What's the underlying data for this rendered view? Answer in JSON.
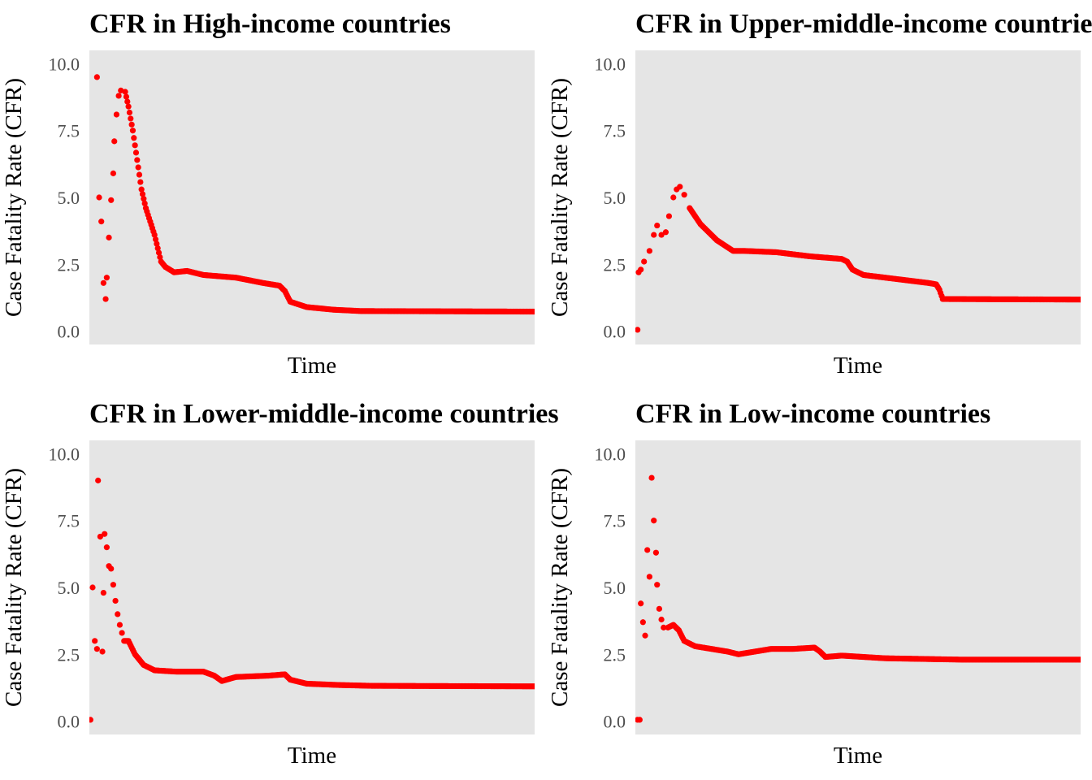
{
  "colors": {
    "point": "#ff0000",
    "panel_background": "#e5e5e5",
    "tick_text": "#4d4d4d"
  },
  "chart_data": [
    {
      "type": "scatter",
      "title": "CFR in High-income countries",
      "xlabel": "Time",
      "ylabel": "Case Fatality Rate (CFR)",
      "x_ticks": "none",
      "y_ticks": [
        0.0,
        2.5,
        5.0,
        7.5,
        10.0
      ],
      "y_tick_labels": [
        "0.0",
        "2.5",
        "5.0",
        "7.5",
        "10.0"
      ],
      "ylim": [
        -0.5,
        10.5
      ],
      "xlim": [
        0,
        410
      ],
      "grid": false,
      "point_color": "#ff0000",
      "anchors": [
        [
          7,
          9.5
        ],
        [
          9,
          5.0
        ],
        [
          11,
          4.1
        ],
        [
          13,
          1.8
        ],
        [
          15,
          1.2
        ],
        [
          16,
          2.0
        ],
        [
          18,
          3.5
        ],
        [
          20,
          4.9
        ],
        [
          22,
          5.9
        ],
        [
          23,
          7.1
        ],
        [
          25,
          8.1
        ],
        [
          27,
          8.8
        ],
        [
          29,
          9.0
        ],
        [
          33,
          8.95
        ],
        [
          36,
          8.4
        ],
        [
          40,
          7.5
        ],
        [
          44,
          6.4
        ],
        [
          48,
          5.3
        ],
        [
          52,
          4.6
        ],
        [
          56,
          4.1
        ],
        [
          60,
          3.6
        ],
        [
          63,
          3.1
        ],
        [
          66,
          2.6
        ],
        [
          70,
          2.4
        ],
        [
          78,
          2.2
        ],
        [
          90,
          2.25
        ],
        [
          105,
          2.1
        ],
        [
          135,
          2.0
        ],
        [
          160,
          1.8
        ],
        [
          175,
          1.7
        ],
        [
          180,
          1.5
        ],
        [
          185,
          1.1
        ],
        [
          200,
          0.9
        ],
        [
          225,
          0.8
        ],
        [
          250,
          0.75
        ],
        [
          410,
          0.73
        ]
      ],
      "dense_from_index": 13
    },
    {
      "type": "scatter",
      "title": "CFR in Upper-middle-income countries",
      "xlabel": "Time",
      "ylabel": "Case Fatality Rate (CFR)",
      "x_ticks": "none",
      "y_ticks": [
        0.0,
        2.5,
        5.0,
        7.5,
        10.0
      ],
      "y_tick_labels": [
        "0.0",
        "2.5",
        "5.0",
        "7.5",
        "10.0"
      ],
      "ylim": [
        -0.5,
        10.5
      ],
      "xlim": [
        0,
        410
      ],
      "grid": false,
      "point_color": "#ff0000",
      "anchors": [
        [
          2,
          0.05
        ],
        [
          3,
          2.2
        ],
        [
          5,
          2.3
        ],
        [
          8,
          2.6
        ],
        [
          13,
          3.0
        ],
        [
          17,
          3.6
        ],
        [
          20,
          3.95
        ],
        [
          24,
          3.6
        ],
        [
          28,
          3.7
        ],
        [
          31,
          4.3
        ],
        [
          35,
          5.0
        ],
        [
          38,
          5.3
        ],
        [
          41,
          5.4
        ],
        [
          45,
          5.1
        ],
        [
          50,
          4.6
        ],
        [
          60,
          4.0
        ],
        [
          75,
          3.4
        ],
        [
          90,
          3.0
        ],
        [
          100,
          3.0
        ],
        [
          130,
          2.95
        ],
        [
          160,
          2.8
        ],
        [
          190,
          2.7
        ],
        [
          195,
          2.6
        ],
        [
          200,
          2.3
        ],
        [
          210,
          2.1
        ],
        [
          240,
          1.95
        ],
        [
          260,
          1.85
        ],
        [
          270,
          1.8
        ],
        [
          277,
          1.75
        ],
        [
          280,
          1.55
        ],
        [
          283,
          1.2
        ],
        [
          410,
          1.18
        ]
      ],
      "dense_from_index": 14
    },
    {
      "type": "scatter",
      "title": "CFR in Lower-middle-income countries",
      "xlabel": "Time",
      "ylabel": "Case Fatality Rate (CFR)",
      "x_ticks": "none",
      "y_ticks": [
        0.0,
        2.5,
        5.0,
        7.5,
        10.0
      ],
      "y_tick_labels": [
        "0.0",
        "2.5",
        "5.0",
        "7.5",
        "10.0"
      ],
      "ylim": [
        -0.5,
        10.5
      ],
      "xlim": [
        0,
        410
      ],
      "grid": false,
      "point_color": "#ff0000",
      "anchors": [
        [
          1,
          0.05
        ],
        [
          3,
          5.0
        ],
        [
          5,
          3.0
        ],
        [
          7,
          2.7
        ],
        [
          8,
          9.0
        ],
        [
          10,
          6.9
        ],
        [
          12,
          2.6
        ],
        [
          13,
          4.8
        ],
        [
          14,
          7.0
        ],
        [
          16,
          6.5
        ],
        [
          18,
          5.8
        ],
        [
          20,
          5.7
        ],
        [
          22,
          5.1
        ],
        [
          24,
          4.5
        ],
        [
          26,
          4.0
        ],
        [
          28,
          3.6
        ],
        [
          30,
          3.3
        ],
        [
          32,
          3.0
        ],
        [
          36,
          3.0
        ],
        [
          42,
          2.5
        ],
        [
          50,
          2.1
        ],
        [
          60,
          1.9
        ],
        [
          80,
          1.85
        ],
        [
          105,
          1.85
        ],
        [
          115,
          1.7
        ],
        [
          122,
          1.5
        ],
        [
          135,
          1.65
        ],
        [
          165,
          1.7
        ],
        [
          180,
          1.75
        ],
        [
          185,
          1.55
        ],
        [
          200,
          1.4
        ],
        [
          230,
          1.35
        ],
        [
          260,
          1.32
        ],
        [
          410,
          1.3
        ]
      ],
      "dense_from_index": 17
    },
    {
      "type": "scatter",
      "title": "CFR in Low-income countries",
      "xlabel": "Time",
      "ylabel": "Case Fatality Rate (CFR)",
      "x_ticks": "none",
      "y_ticks": [
        0.0,
        2.5,
        5.0,
        7.5,
        10.0
      ],
      "y_tick_labels": [
        "0.0",
        "2.5",
        "5.0",
        "7.5",
        "10.0"
      ],
      "ylim": [
        -0.5,
        10.5
      ],
      "xlim": [
        0,
        410
      ],
      "grid": false,
      "point_color": "#ff0000",
      "anchors": [
        [
          2,
          0.05
        ],
        [
          4,
          0.05
        ],
        [
          5,
          4.4
        ],
        [
          7,
          3.7
        ],
        [
          9,
          3.2
        ],
        [
          11,
          6.4
        ],
        [
          13,
          5.4
        ],
        [
          15,
          9.1
        ],
        [
          17,
          7.5
        ],
        [
          19,
          6.3
        ],
        [
          20,
          5.1
        ],
        [
          22,
          4.2
        ],
        [
          24,
          3.8
        ],
        [
          26,
          3.5
        ],
        [
          30,
          3.5
        ],
        [
          35,
          3.6
        ],
        [
          40,
          3.4
        ],
        [
          45,
          3.0
        ],
        [
          55,
          2.8
        ],
        [
          70,
          2.7
        ],
        [
          85,
          2.6
        ],
        [
          95,
          2.5
        ],
        [
          110,
          2.6
        ],
        [
          125,
          2.7
        ],
        [
          145,
          2.7
        ],
        [
          165,
          2.75
        ],
        [
          170,
          2.6
        ],
        [
          175,
          2.4
        ],
        [
          190,
          2.45
        ],
        [
          230,
          2.35
        ],
        [
          300,
          2.3
        ],
        [
          410,
          2.3
        ]
      ],
      "dense_from_index": 14
    }
  ]
}
